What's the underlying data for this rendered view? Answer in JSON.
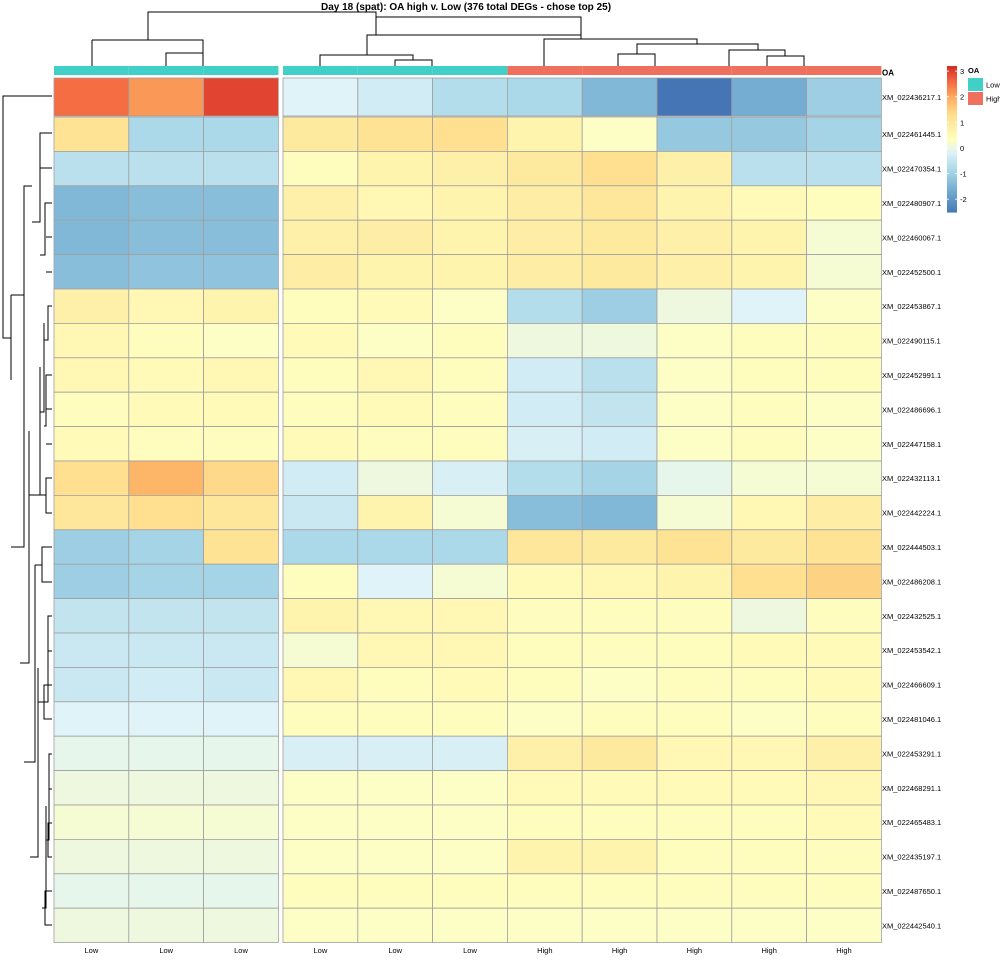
{
  "chart_data": {
    "type": "heatmap",
    "title": "Day 18 (spat): OA high v. Low (376 total DEGs - chose top 25)",
    "annotation_label": "OA",
    "legend": {
      "title": "OA",
      "items": [
        {
          "label": "Low",
          "color": "#40d0c8"
        },
        {
          "label": "High",
          "color": "#f07060"
        }
      ],
      "ticks": [
        3,
        2,
        1,
        0,
        -1,
        -2
      ],
      "range": [
        -2.5,
        3.2
      ]
    },
    "columns": [
      "Low",
      "Low",
      "Low",
      "Low",
      "Low",
      "Low",
      "High",
      "High",
      "High",
      "High",
      "High"
    ],
    "column_groups": [
      "Low",
      "Low",
      "Low",
      "Low",
      "Low",
      "Low",
      "High",
      "High",
      "High",
      "High",
      "High"
    ],
    "rows": [
      "XM_022436217.1",
      "XM_022461445.1",
      "XM_022470354.1",
      "XM_022480907.1",
      "XM_022460067.1",
      "XM_022452500.1",
      "XM_022453867.1",
      "XM_022490115.1",
      "XM_022452991.1",
      "XM_022486696.1",
      "XM_022447158.1",
      "XM_022432113.1",
      "XM_022442224.1",
      "XM_022444503.1",
      "XM_022486208.1",
      "XM_022432525.1",
      "XM_022453542.1",
      "XM_022466609.1",
      "XM_022481046.1",
      "XM_022453291.1",
      "XM_022468291.1",
      "XM_022465483.1",
      "XM_022435197.1",
      "XM_022487650.1",
      "XM_022442540.1"
    ],
    "values": [
      [
        2.6,
        2.2,
        3.0,
        -0.1,
        -0.3,
        -0.7,
        -0.8,
        -1.4,
        -2.5,
        -1.6,
        -1.0
      ],
      [
        1.2,
        -0.8,
        -0.8,
        1.0,
        1.2,
        1.3,
        0.7,
        0.3,
        -1.1,
        -1.1,
        -0.9
      ],
      [
        -0.6,
        -0.6,
        -0.6,
        0.4,
        0.7,
        0.8,
        1.0,
        1.3,
        0.8,
        -0.6,
        -0.6
      ],
      [
        -1.4,
        -1.3,
        -1.3,
        0.8,
        0.6,
        0.7,
        0.9,
        1.1,
        0.7,
        0.5,
        0.4
      ],
      [
        -1.4,
        -1.3,
        -1.3,
        0.8,
        0.9,
        0.7,
        0.9,
        1.0,
        0.8,
        0.7,
        0.2
      ],
      [
        -1.3,
        -1.2,
        -1.2,
        0.9,
        0.7,
        0.7,
        0.9,
        1.0,
        0.8,
        0.7,
        0.2
      ],
      [
        0.8,
        0.6,
        0.7,
        0.4,
        0.5,
        0.3,
        -0.7,
        -1.0,
        0.1,
        -0.1,
        0.3
      ],
      [
        0.6,
        0.4,
        0.3,
        0.5,
        0.3,
        0.4,
        0.1,
        0.1,
        0.3,
        0.4,
        0.4
      ],
      [
        0.6,
        0.5,
        0.6,
        0.4,
        0.6,
        0.4,
        -0.3,
        -0.6,
        0.3,
        0.4,
        0.4
      ],
      [
        0.4,
        0.5,
        0.5,
        0.4,
        0.5,
        0.4,
        -0.3,
        -0.5,
        0.3,
        0.4,
        0.3
      ],
      [
        0.5,
        0.4,
        0.4,
        0.5,
        0.4,
        0.4,
        -0.2,
        -0.3,
        0.3,
        0.4,
        0.3
      ],
      [
        1.3,
        1.9,
        1.4,
        -0.3,
        0.1,
        -0.2,
        -0.7,
        -0.9,
        0.0,
        0.2,
        0.2
      ],
      [
        1.1,
        1.3,
        1.1,
        -0.4,
        0.7,
        0.2,
        -1.3,
        -1.4,
        0.2,
        0.6,
        0.9
      ],
      [
        -1.0,
        -0.9,
        1.2,
        -0.8,
        -0.8,
        -0.8,
        1.1,
        1.0,
        1.2,
        1.0,
        1.2
      ],
      [
        -1.0,
        -0.9,
        -0.9,
        0.4,
        -0.1,
        0.2,
        0.5,
        0.6,
        0.7,
        1.3,
        1.5
      ],
      [
        -0.5,
        -0.5,
        -0.5,
        0.7,
        0.6,
        0.6,
        0.4,
        0.4,
        0.4,
        0.1,
        0.4
      ],
      [
        -0.4,
        -0.4,
        -0.4,
        0.2,
        0.6,
        0.6,
        0.4,
        0.4,
        0.4,
        0.5,
        0.5
      ],
      [
        -0.4,
        -0.3,
        -0.4,
        0.6,
        0.4,
        0.5,
        0.4,
        0.3,
        0.4,
        0.4,
        0.5
      ],
      [
        -0.1,
        -0.1,
        -0.1,
        0.4,
        0.4,
        0.4,
        0.3,
        0.4,
        0.4,
        0.3,
        0.4
      ],
      [
        0.0,
        0.0,
        0.0,
        -0.2,
        -0.2,
        -0.2,
        0.8,
        1.0,
        0.6,
        0.6,
        0.8
      ],
      [
        0.1,
        0.1,
        0.1,
        0.3,
        0.3,
        0.3,
        0.5,
        0.5,
        0.5,
        0.5,
        0.6
      ],
      [
        0.2,
        0.2,
        0.2,
        0.3,
        0.3,
        0.3,
        0.4,
        0.4,
        0.4,
        0.4,
        0.5
      ],
      [
        0.1,
        0.1,
        0.1,
        0.3,
        0.3,
        0.3,
        0.7,
        0.7,
        0.4,
        0.4,
        0.4
      ],
      [
        0.0,
        0.0,
        0.0,
        0.4,
        0.4,
        0.4,
        0.4,
        0.4,
        0.4,
        0.4,
        0.4
      ],
      [
        0.1,
        0.1,
        0.1,
        0.3,
        0.3,
        0.3,
        0.3,
        0.3,
        0.3,
        0.3,
        0.3
      ]
    ]
  }
}
